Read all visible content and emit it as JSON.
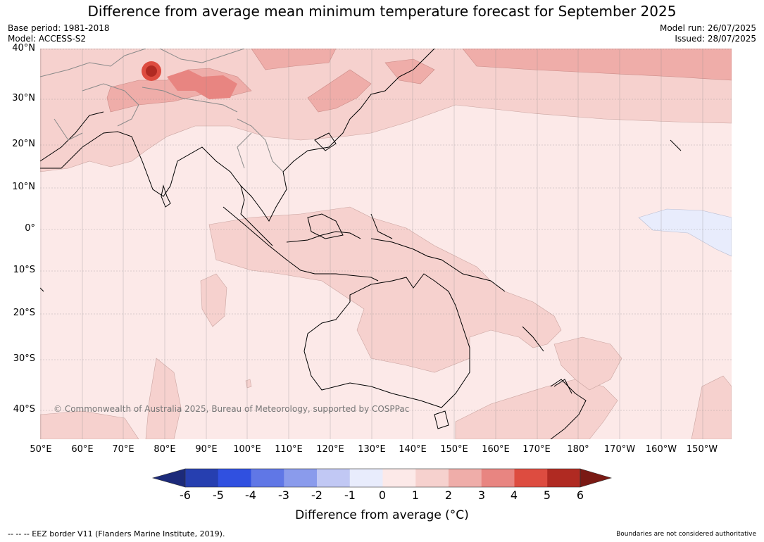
{
  "title": "Difference from average mean minimum temperature forecast for September 2025",
  "base_period": "Base period: 1981-2018",
  "model": "Model: ACCESS-S2",
  "model_run": "Model run: 26/07/2025",
  "issued": "Issued: 28/07/2025",
  "copyright": "© Commonwealth of Australia 2025, Bureau of Meteorology, supported by COSPPac",
  "lat_labels": [
    "40°N",
    "30°N",
    "20°N",
    "10°N",
    "0°",
    "10°S",
    "20°S",
    "30°S",
    "40°S"
  ],
  "lon_labels": [
    "50°E",
    "60°E",
    "70°E",
    "80°E",
    "90°E",
    "100°E",
    "110°E",
    "120°E",
    "130°E",
    "140°E",
    "150°E",
    "160°E",
    "170°E",
    "180°",
    "170°W",
    "160°W",
    "150°W"
  ],
  "colorbar": {
    "ticks": [
      "-6",
      "-5",
      "-4",
      "-3",
      "-2",
      "-1",
      "0",
      "1",
      "2",
      "3",
      "4",
      "5",
      "6"
    ],
    "colors": [
      "#1c2a7a",
      "#263fb0",
      "#3050e0",
      "#6077e6",
      "#8a9bec",
      "#c1c8f4",
      "#e8ecfc",
      "#fce9e8",
      "#f6d1ce",
      "#efada9",
      "#e88581",
      "#dd4c40",
      "#b02a22",
      "#7a1a14"
    ],
    "label": "Difference from average (°C)"
  },
  "footer_left": "-- -- -- EEZ border V11 (Flanders Marine Institute, 2019).",
  "footer_right": "Boundaries are not considered authoritative"
}
